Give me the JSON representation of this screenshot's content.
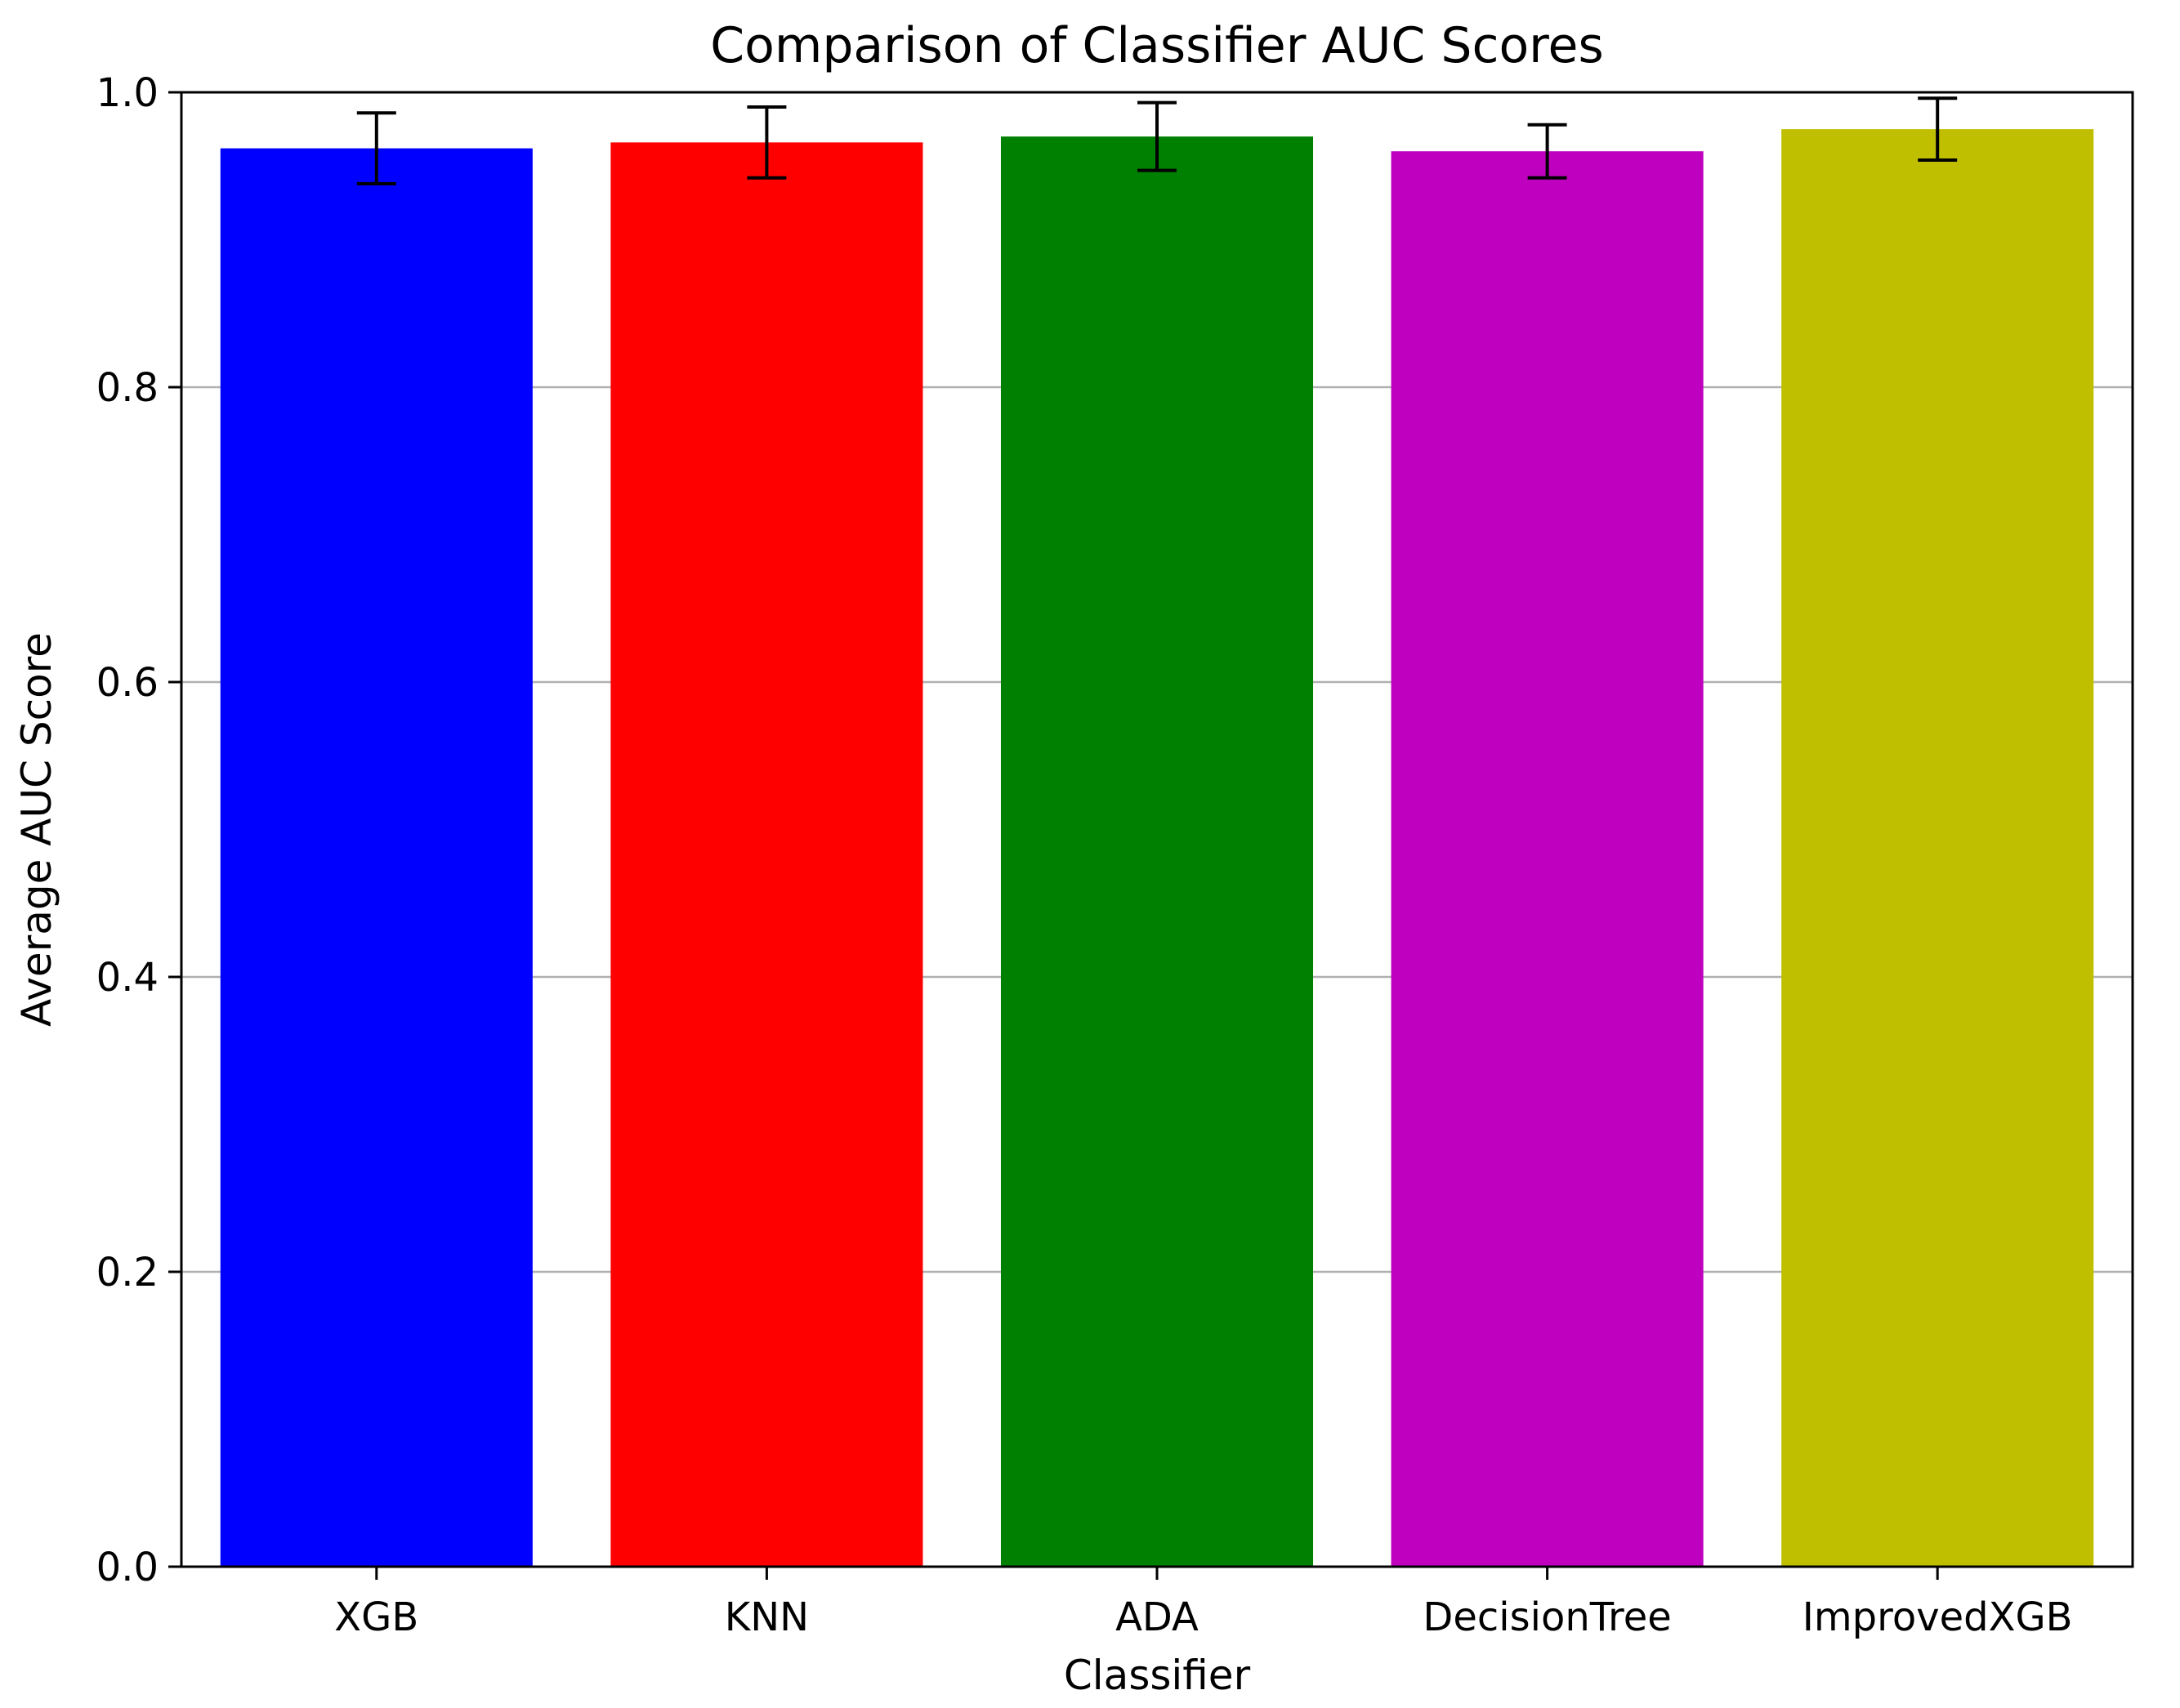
{
  "chart_data": {
    "type": "bar",
    "title": "Comparison of Classifier AUC Scores",
    "xlabel": "Classifier",
    "ylabel": "Average AUC Score",
    "categories": [
      "XGB",
      "KNN",
      "ADA",
      "DecisionTree",
      "ImprovedXGB"
    ],
    "values": [
      0.962,
      0.966,
      0.97,
      0.96,
      0.975
    ],
    "errors": [
      0.024,
      0.024,
      0.023,
      0.018,
      0.021
    ],
    "colors": [
      "#0000ff",
      "#ff0000",
      "#008000",
      "#bf00bf",
      "#bfbf00"
    ],
    "ylim": [
      0,
      1.0
    ],
    "yticks": [
      0.0,
      0.2,
      0.4,
      0.6,
      0.8,
      1.0
    ],
    "ytick_labels": [
      "0.0",
      "0.2",
      "0.4",
      "0.6",
      "0.8",
      "1.0"
    ],
    "grid": "y-major",
    "grid_color": "#b0b0b0",
    "errorbar_color": "#000000",
    "legend": "none"
  }
}
